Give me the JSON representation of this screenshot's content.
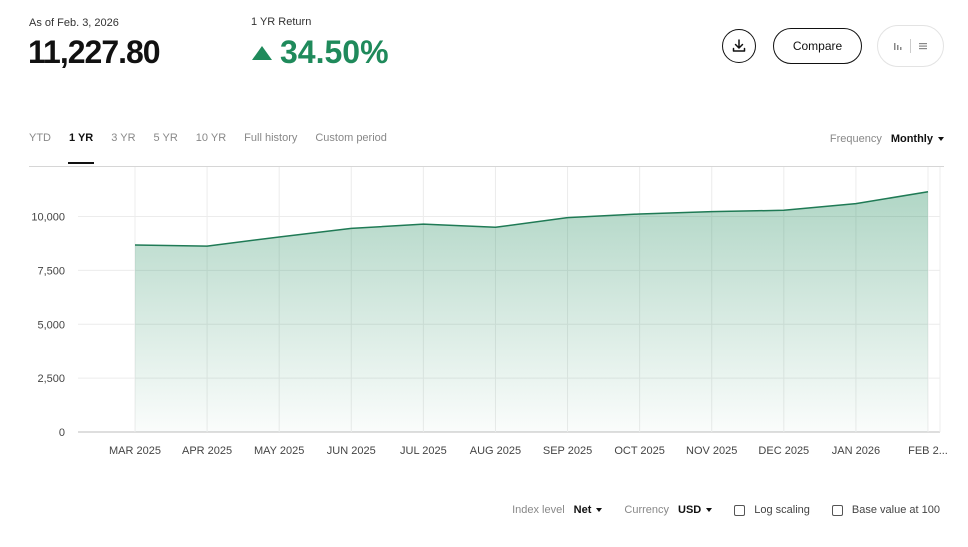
{
  "summary": {
    "as_of": "As of Feb. 3, 2026",
    "value": "11,227.80",
    "return_label": "1 YR Return",
    "return_value": "34.50%",
    "accent_color": "#1f8a5b"
  },
  "toolbar": {
    "download_icon": "download-icon",
    "compare_label": "Compare",
    "chart_view_icon": "bar-chart-icon",
    "table_view_icon": "list-icon"
  },
  "tabs": [
    {
      "label": "YTD",
      "active": false
    },
    {
      "label": "1 YR",
      "active": true
    },
    {
      "label": "3 YR",
      "active": false
    },
    {
      "label": "5 YR",
      "active": false
    },
    {
      "label": "10 YR",
      "active": false
    },
    {
      "label": "Full history",
      "active": false
    },
    {
      "label": "Custom period",
      "active": false
    }
  ],
  "frequency": {
    "label": "Frequency",
    "value": "Monthly"
  },
  "controls": {
    "index_level_label": "Index level",
    "index_level_value": "Net",
    "currency_label": "Currency",
    "currency_value": "USD",
    "log_scaling_label": "Log scaling",
    "log_scaling_checked": false,
    "base_value_label": "Base value at 100",
    "base_value_checked": false
  },
  "chart_data": {
    "type": "area",
    "categories": [
      "MAR 2025",
      "APR 2025",
      "MAY 2025",
      "JUN 2025",
      "JUL 2025",
      "AUG 2025",
      "SEP 2025",
      "OCT 2025",
      "NOV 2025",
      "DEC 2025",
      "JAN 2026",
      "FEB 2..."
    ],
    "values": [
      8680,
      8630,
      9050,
      9450,
      9650,
      9500,
      9950,
      10120,
      10230,
      10290,
      10600,
      11150
    ],
    "yticks": [
      "0",
      "2,500",
      "5,000",
      "7,500",
      "10,000"
    ],
    "ytick_values": [
      0,
      2500,
      5000,
      7500,
      10000
    ],
    "ylim": [
      0,
      12300
    ],
    "line_color": "#1f7a55",
    "grid": true
  }
}
